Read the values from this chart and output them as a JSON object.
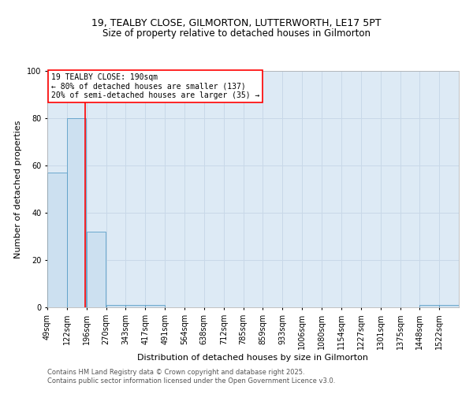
{
  "title_line1": "19, TEALBY CLOSE, GILMORTON, LUTTERWORTH, LE17 5PT",
  "title_line2": "Size of property relative to detached houses in Gilmorton",
  "xlabel": "Distribution of detached houses by size in Gilmorton",
  "ylabel": "Number of detached properties",
  "bar_color": "#cce0f0",
  "bar_edge_color": "#5a9ec8",
  "bins": [
    49,
    122,
    196,
    270,
    343,
    417,
    491,
    564,
    638,
    712,
    785,
    859,
    933,
    1006,
    1080,
    1154,
    1227,
    1301,
    1375,
    1448,
    1522
  ],
  "counts": [
    57,
    80,
    32,
    1,
    1,
    1,
    0,
    0,
    0,
    0,
    0,
    0,
    0,
    0,
    0,
    0,
    0,
    0,
    0,
    1,
    1
  ],
  "red_line_x": 190,
  "annotation_text": "19 TEALBY CLOSE: 190sqm\n← 80% of detached houses are smaller (137)\n20% of semi-detached houses are larger (35) →",
  "ylim": [
    0,
    100
  ],
  "grid_color": "#c8d8e8",
  "background_color": "#ddeaf5",
  "footer_line1": "Contains HM Land Registry data © Crown copyright and database right 2025.",
  "footer_line2": "Contains public sector information licensed under the Open Government Licence v3.0.",
  "title_fontsize": 9,
  "axis_label_fontsize": 8,
  "tick_fontsize": 7,
  "annotation_fontsize": 7,
  "footer_fontsize": 6
}
